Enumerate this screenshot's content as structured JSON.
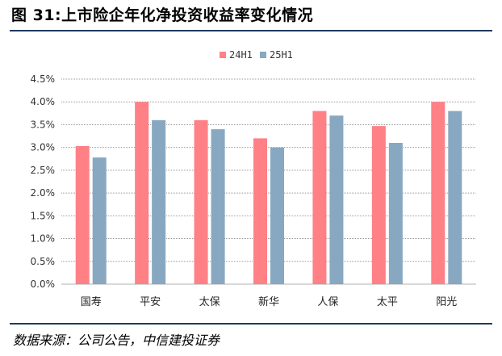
{
  "figure": {
    "title": "图 31:上市险企年化净投资收益率变化情况",
    "source": "数据来源：公司公告，中信建投证券"
  },
  "colors": {
    "s1": "#ff8085",
    "s2": "#87a8c0",
    "grid": "#999999",
    "rule": "#1f3b5f"
  },
  "chart_data": {
    "type": "bar",
    "categories": [
      "国寿",
      "平安",
      "太保",
      "新华",
      "人保",
      "太平",
      "阳光"
    ],
    "series": [
      {
        "name": "24H1",
        "values": [
          3.03,
          4.0,
          3.6,
          3.2,
          3.8,
          3.47,
          4.0
        ]
      },
      {
        "name": "25H1",
        "values": [
          2.78,
          3.6,
          3.4,
          3.0,
          3.7,
          3.1,
          3.8
        ]
      }
    ],
    "yticks": [
      "0.0%",
      "0.5%",
      "1.0%",
      "1.5%",
      "2.0%",
      "2.5%",
      "3.0%",
      "3.5%",
      "4.0%",
      "4.5%"
    ],
    "ylim": [
      0,
      4.5
    ],
    "ylabel": "",
    "xlabel": "",
    "legend": "top-center",
    "grid": true
  }
}
